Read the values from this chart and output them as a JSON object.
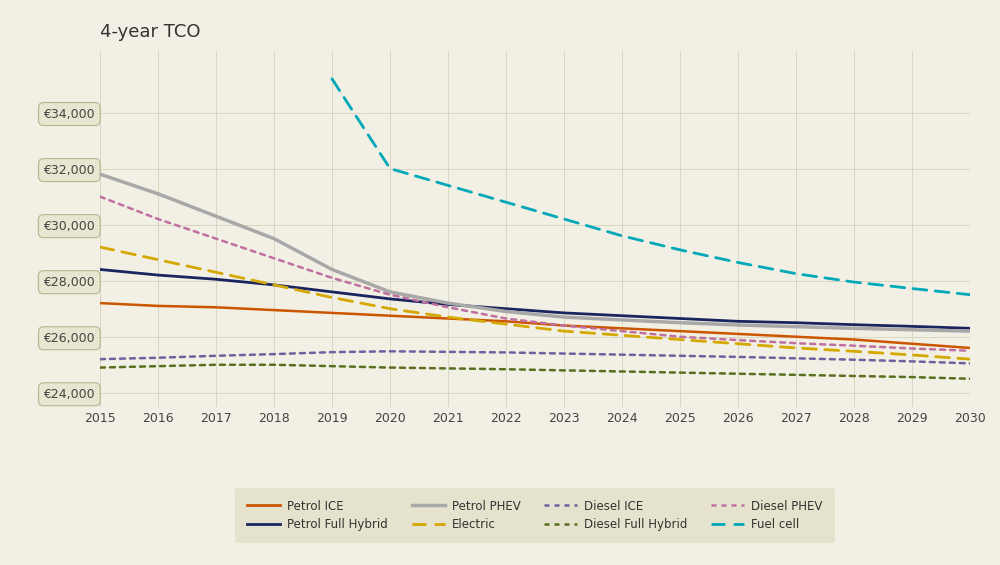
{
  "title": "4-year TCO",
  "years": [
    2015,
    2016,
    2017,
    2018,
    2019,
    2020,
    2021,
    2022,
    2023,
    2024,
    2025,
    2026,
    2027,
    2028,
    2029,
    2030
  ],
  "series": [
    {
      "label": "Petrol ICE",
      "color": "#cc5500",
      "linestyle": "solid",
      "linewidth": 1.8,
      "values": [
        27200,
        27100,
        27050,
        26950,
        26850,
        26750,
        26650,
        26550,
        26400,
        26300,
        26200,
        26100,
        26000,
        25900,
        25750,
        25600
      ]
    },
    {
      "label": "Petrol Full Hybrid",
      "color": "#1a2560",
      "linestyle": "solid",
      "linewidth": 2.0,
      "values": [
        28400,
        28200,
        28050,
        27850,
        27600,
        27350,
        27150,
        27000,
        26850,
        26750,
        26650,
        26550,
        26500,
        26430,
        26370,
        26300
      ]
    },
    {
      "label": "Petrol PHEV",
      "color": "#a8a8a8",
      "linestyle": "solid",
      "linewidth": 2.5,
      "values": [
        31800,
        31100,
        30300,
        29500,
        28400,
        27600,
        27200,
        26900,
        26700,
        26600,
        26500,
        26420,
        26360,
        26300,
        26250,
        26200
      ]
    },
    {
      "label": "Electric",
      "color": "#d4a800",
      "linestyle": "dashed",
      "linewidth": 2.0,
      "values": [
        29200,
        28750,
        28300,
        27850,
        27400,
        27000,
        26700,
        26450,
        26200,
        26050,
        25900,
        25750,
        25600,
        25480,
        25350,
        25200
      ]
    },
    {
      "label": "Diesel ICE",
      "color": "#7060a0",
      "linestyle": "dotted",
      "linewidth": 1.8,
      "values": [
        25200,
        25250,
        25320,
        25380,
        25450,
        25480,
        25460,
        25440,
        25400,
        25360,
        25320,
        25280,
        25230,
        25180,
        25120,
        25050
      ]
    },
    {
      "label": "Diesel Full Hybrid",
      "color": "#5a7020",
      "linestyle": "dotted",
      "linewidth": 1.8,
      "values": [
        24900,
        24950,
        25000,
        25000,
        24950,
        24900,
        24870,
        24840,
        24800,
        24760,
        24720,
        24680,
        24640,
        24600,
        24560,
        24500
      ]
    },
    {
      "label": "Diesel PHEV",
      "color": "#c070a0",
      "linestyle": "dotted",
      "linewidth": 1.8,
      "values": [
        31000,
        30200,
        29500,
        28800,
        28100,
        27500,
        27050,
        26650,
        26400,
        26200,
        26000,
        25880,
        25770,
        25680,
        25580,
        25500
      ]
    },
    {
      "label": "Fuel cell",
      "color": "#00a8b8",
      "linestyle": "dashed",
      "linewidth": 2.0,
      "values": [
        null,
        null,
        null,
        null,
        35200,
        32000,
        31400,
        30800,
        30200,
        29600,
        29100,
        28650,
        28250,
        27950,
        27720,
        27500
      ]
    }
  ],
  "ylim": [
    23500,
    36200
  ],
  "yticks": [
    24000,
    26000,
    28000,
    30000,
    32000,
    34000
  ],
  "xlim_left": 2015,
  "xlim_right": 2030,
  "background_color": "#f2f0e4",
  "plot_bg_color": "#f2f0e4",
  "legend_bg_color": "#e2dfc8",
  "grid_color": "#d5d2bc",
  "title_fontsize": 13,
  "tick_fontsize": 9,
  "ylabel_box_facecolor": "#e8e5d0",
  "ylabel_box_edgecolor": "#b8b490"
}
